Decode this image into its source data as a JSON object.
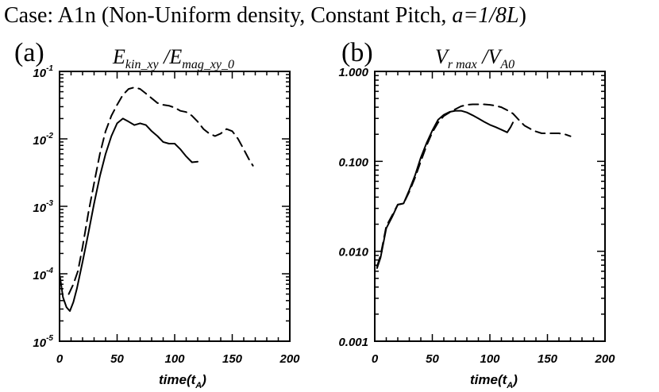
{
  "header": {
    "title_prefix": "Case: A1n (Non-Uniform density, Constant Pitch, ",
    "title_param": "a=1/8L",
    "title_suffix": ")"
  },
  "chart_data": [
    {
      "panel": "(a)",
      "type": "line",
      "title_parts": {
        "e1": "E",
        "e1_sub": "kin_xy",
        "slash": " /",
        "e2": "E",
        "e2_sub": "mag_xy_0"
      },
      "xlabel_parts": {
        "main": "time(t",
        "sub": "A",
        "close": ")"
      },
      "ylabel": "",
      "yscale": "log",
      "xlim": [
        0,
        200
      ],
      "ylim": [
        1e-05,
        0.1
      ],
      "xticks": [
        {
          "value": 0,
          "label": "0"
        },
        {
          "value": 50,
          "label": "50"
        },
        {
          "value": 100,
          "label": "100"
        },
        {
          "value": 150,
          "label": "150"
        },
        {
          "value": 200,
          "label": "200"
        }
      ],
      "yticks": [
        {
          "value": 1e-05,
          "base": "10",
          "exp": "-5"
        },
        {
          "value": 0.0001,
          "base": "10",
          "exp": "-4"
        },
        {
          "value": 0.001,
          "base": "10",
          "exp": "-3"
        },
        {
          "value": 0.01,
          "base": "10",
          "exp": "-2"
        },
        {
          "value": 0.1,
          "base": "10",
          "exp": "-1"
        }
      ],
      "series": [
        {
          "name": "solid",
          "style": "solid",
          "x": [
            0,
            3,
            6,
            9,
            12,
            15,
            20,
            25,
            30,
            35,
            40,
            45,
            50,
            55,
            60,
            65,
            70,
            75,
            80,
            85,
            90,
            95,
            100,
            105,
            110,
            115,
            120
          ],
          "y": [
            0.0001,
            4.5e-05,
            3.2e-05,
            2.8e-05,
            3.8e-05,
            6e-05,
            0.00015,
            0.0004,
            0.0011,
            0.0028,
            0.006,
            0.011,
            0.017,
            0.02,
            0.018,
            0.016,
            0.017,
            0.016,
            0.013,
            0.011,
            0.009,
            0.0085,
            0.0085,
            0.007,
            0.0055,
            0.0045,
            0.0046
          ]
        },
        {
          "name": "dashed",
          "style": "dashed",
          "x": [
            8,
            12,
            16,
            20,
            25,
            30,
            35,
            40,
            45,
            50,
            55,
            60,
            65,
            70,
            75,
            80,
            85,
            90,
            95,
            100,
            105,
            110,
            115,
            120,
            125,
            130,
            135,
            140,
            145,
            150,
            155,
            160,
            165,
            168
          ],
          "y": [
            5e-05,
            7e-05,
            0.00011,
            0.00025,
            0.0008,
            0.0022,
            0.006,
            0.013,
            0.022,
            0.032,
            0.045,
            0.055,
            0.058,
            0.055,
            0.047,
            0.04,
            0.034,
            0.032,
            0.031,
            0.029,
            0.026,
            0.025,
            0.022,
            0.018,
            0.014,
            0.012,
            0.011,
            0.012,
            0.014,
            0.013,
            0.01,
            0.007,
            0.0048,
            0.004
          ]
        }
      ]
    },
    {
      "panel": "(b)",
      "type": "line",
      "title_parts": {
        "e1": "V",
        "e1_sub": "r  max",
        "slash": " /",
        "e2": "V",
        "e2_sub": "A0"
      },
      "xlabel_parts": {
        "main": "time(t",
        "sub": "A",
        "close": ")"
      },
      "ylabel": "",
      "yscale": "log",
      "xlim": [
        0,
        200
      ],
      "ylim": [
        0.001,
        1.0
      ],
      "xticks": [
        {
          "value": 0,
          "label": "0"
        },
        {
          "value": 50,
          "label": "50"
        },
        {
          "value": 100,
          "label": "100"
        },
        {
          "value": 150,
          "label": "150"
        },
        {
          "value": 200,
          "label": "200"
        }
      ],
      "yticks": [
        {
          "value": 0.001,
          "label": "0.001"
        },
        {
          "value": 0.01,
          "label": "0.010"
        },
        {
          "value": 0.1,
          "label": "0.100"
        },
        {
          "value": 1.0,
          "label": "1.000"
        }
      ],
      "series": [
        {
          "name": "solid",
          "style": "solid",
          "x": [
            2,
            5,
            10,
            15,
            20,
            25,
            30,
            35,
            40,
            45,
            50,
            55,
            60,
            65,
            70,
            75,
            80,
            85,
            90,
            95,
            100,
            105,
            110,
            115,
            118,
            120
          ],
          "y": [
            0.0065,
            0.0085,
            0.018,
            0.024,
            0.033,
            0.034,
            0.048,
            0.07,
            0.11,
            0.16,
            0.22,
            0.29,
            0.33,
            0.355,
            0.365,
            0.365,
            0.35,
            0.325,
            0.3,
            0.275,
            0.255,
            0.24,
            0.225,
            0.21,
            0.24,
            0.27
          ]
        },
        {
          "name": "dashed",
          "style": "dashed",
          "x": [
            2,
            5,
            10,
            15,
            20,
            25,
            30,
            35,
            40,
            45,
            50,
            55,
            60,
            65,
            70,
            75,
            80,
            85,
            90,
            95,
            100,
            105,
            110,
            115,
            120,
            125,
            130,
            135,
            140,
            145,
            150,
            155,
            160,
            165,
            170
          ],
          "y": [
            0.0068,
            0.009,
            0.019,
            0.025,
            0.033,
            0.034,
            0.046,
            0.066,
            0.1,
            0.15,
            0.21,
            0.27,
            0.32,
            0.35,
            0.38,
            0.41,
            0.425,
            0.43,
            0.43,
            0.43,
            0.425,
            0.415,
            0.4,
            0.37,
            0.34,
            0.29,
            0.25,
            0.23,
            0.215,
            0.205,
            0.205,
            0.205,
            0.205,
            0.2,
            0.19
          ]
        }
      ]
    }
  ]
}
